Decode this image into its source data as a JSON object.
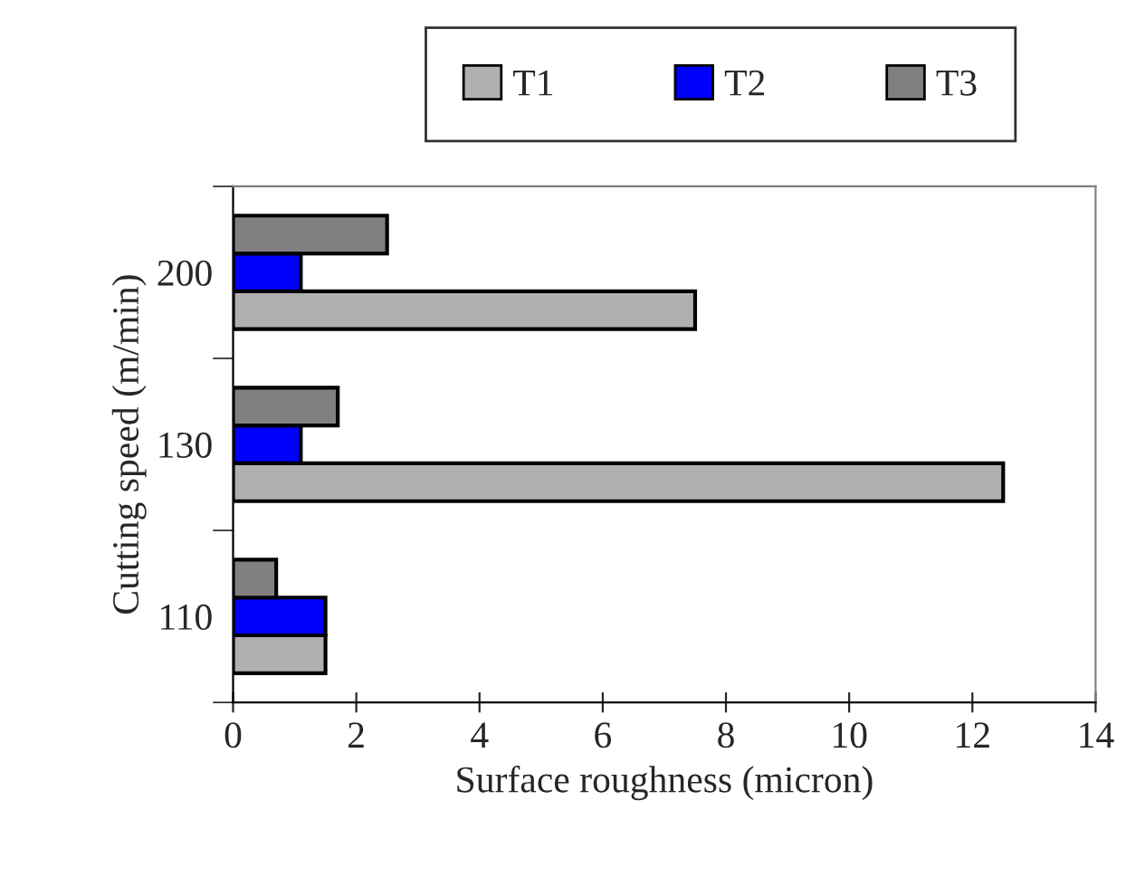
{
  "chart_data": {
    "type": "bar",
    "orientation": "horizontal",
    "xlabel": "Surface roughness (micron)",
    "ylabel": "Cutting speed (m/min)",
    "categories": [
      "200",
      "130",
      "110"
    ],
    "series": [
      {
        "name": "T1",
        "color": "#b0b0b0",
        "values": [
          7.5,
          12.5,
          1.5
        ]
      },
      {
        "name": "T2",
        "color": "#0000ff",
        "values": [
          1.1,
          1.1,
          1.5
        ]
      },
      {
        "name": "T3",
        "color": "#808080",
        "values": [
          2.5,
          1.7,
          0.7
        ]
      }
    ],
    "xlim": [
      0,
      14
    ],
    "xticks": [
      0,
      2,
      4,
      6,
      8,
      10,
      12,
      14
    ],
    "grid": false,
    "legend": "top"
  }
}
